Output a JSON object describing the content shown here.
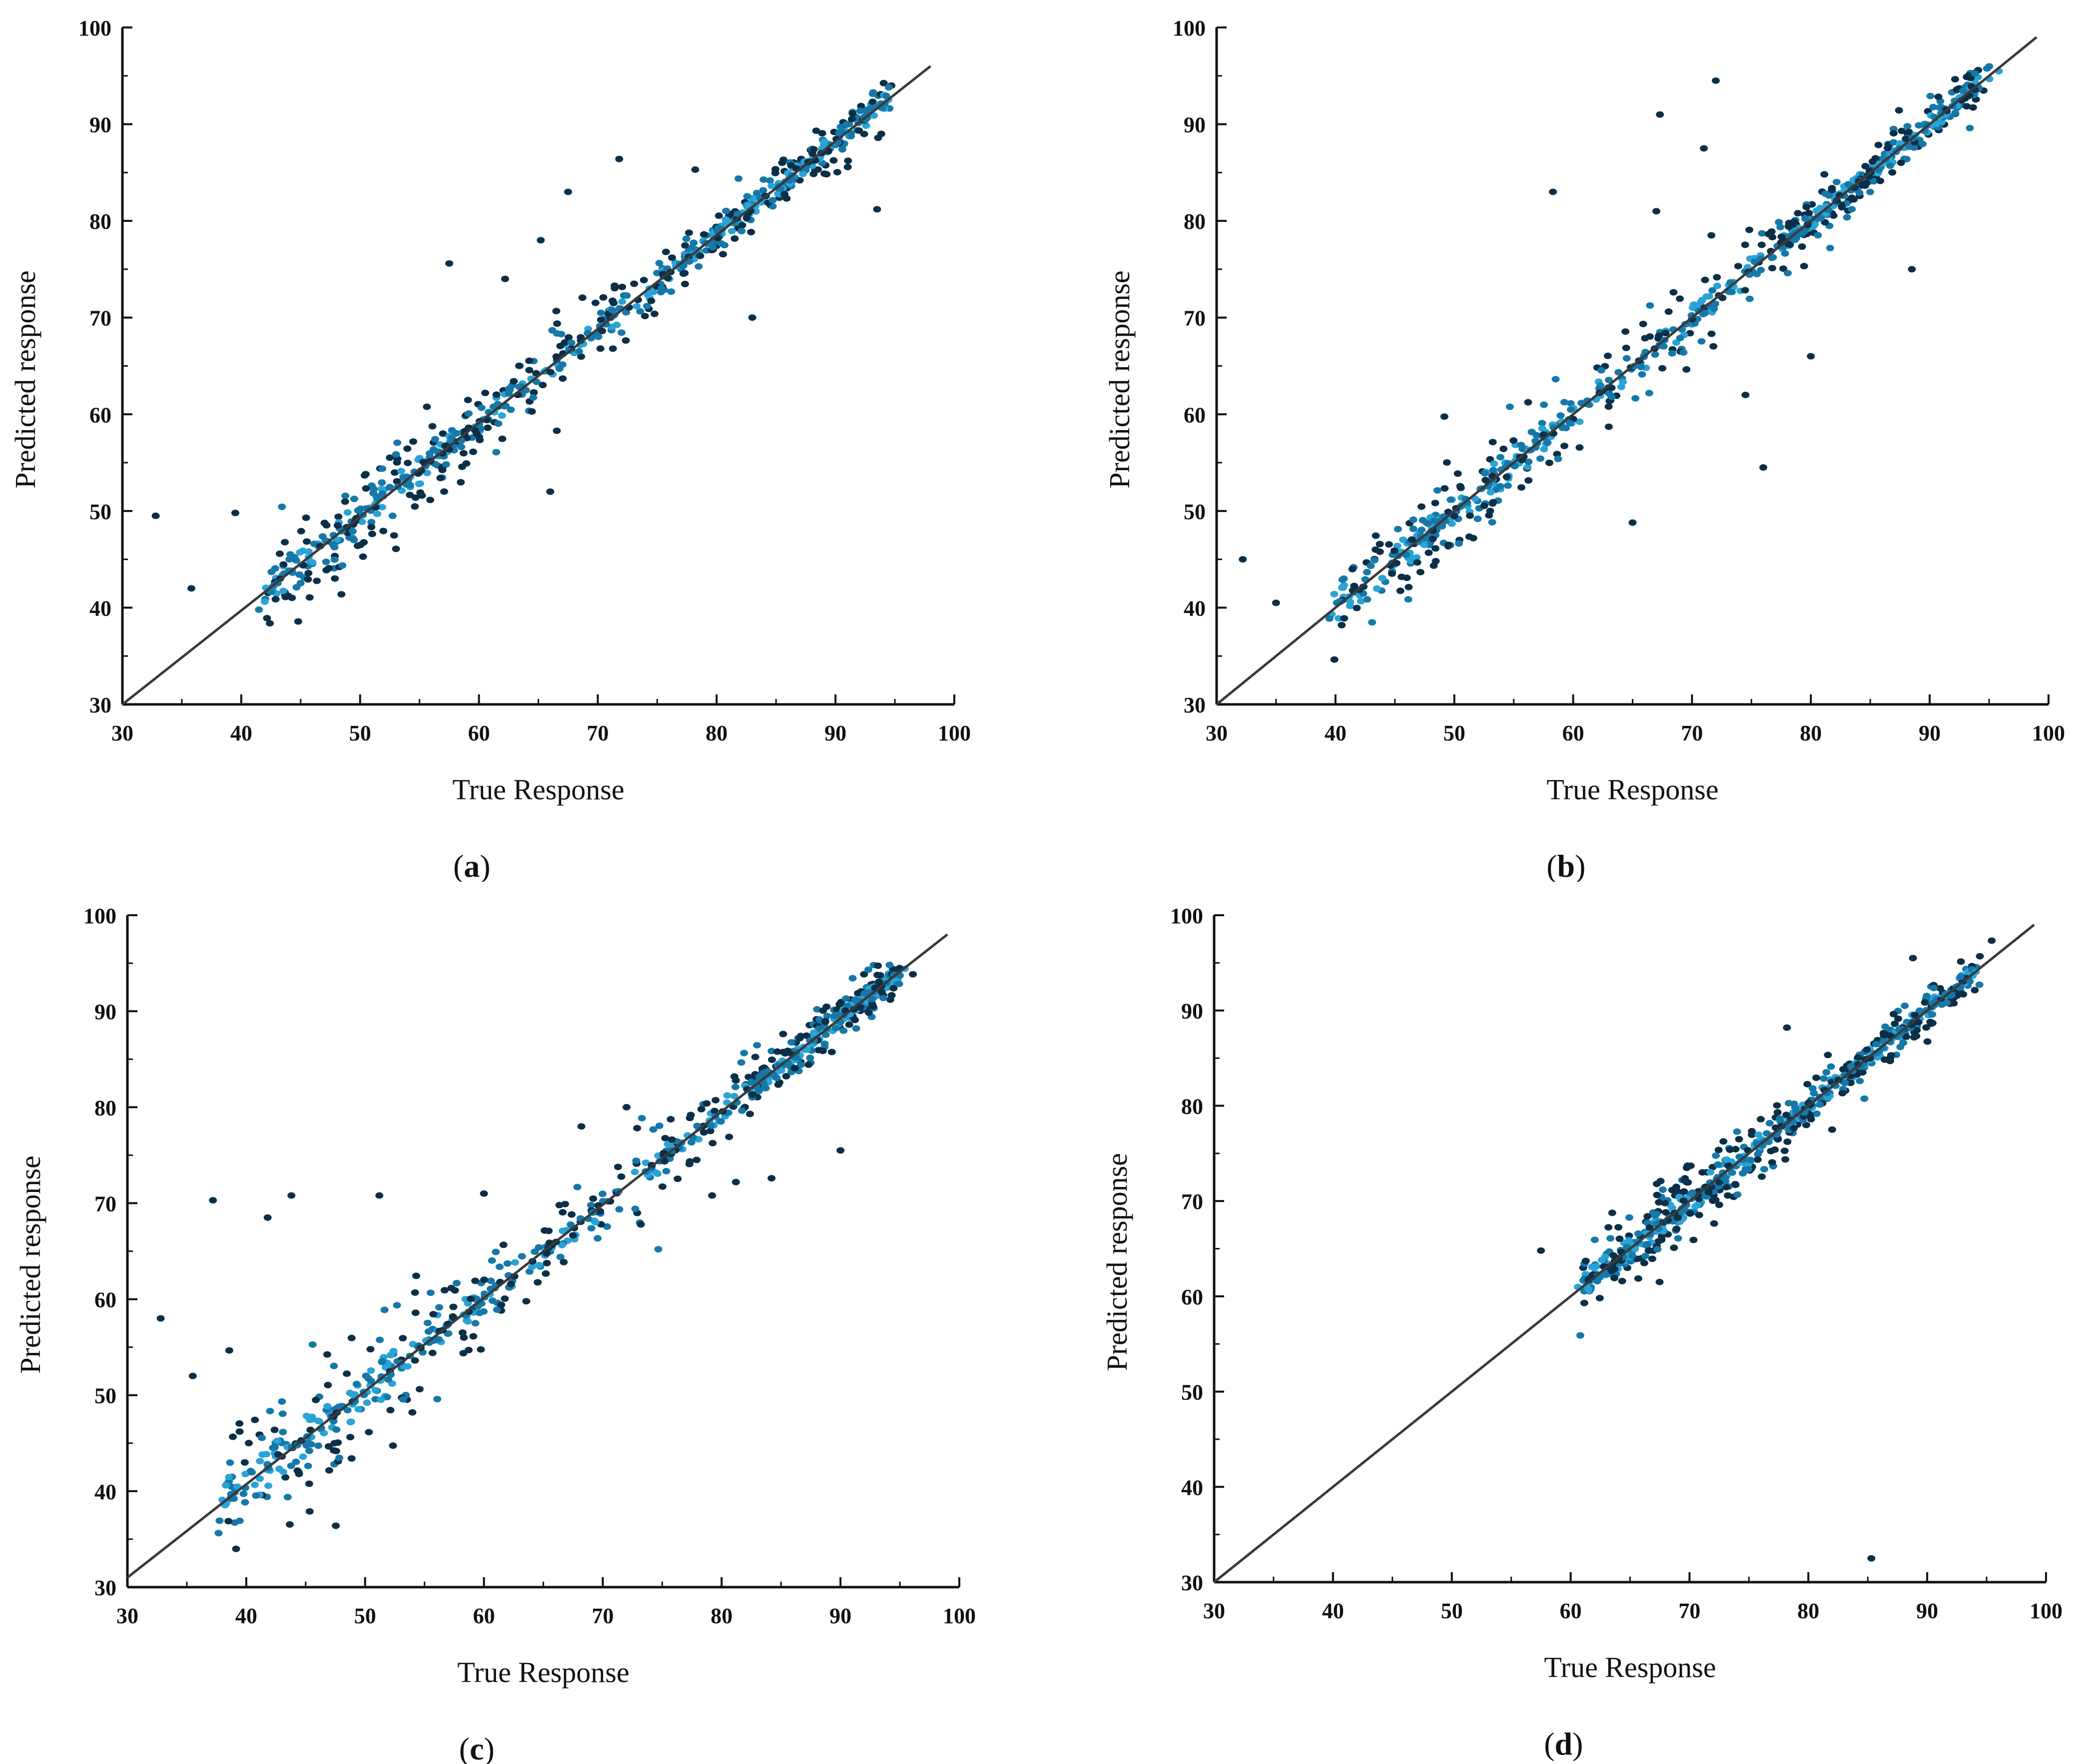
{
  "colors": {
    "point_dark": "#0c2f48",
    "point_mid": "#1578a8",
    "point_light": "#2aa3d6",
    "line": "#3a3a3a",
    "axis": "#111111"
  },
  "chart_data": [
    {
      "id": "a",
      "type": "scatter",
      "caption_letter": "a",
      "xlabel": "True Response",
      "ylabel": "Predicted response",
      "xlim": [
        30,
        100
      ],
      "ylim": [
        30,
        100
      ],
      "xticks": [
        30,
        40,
        50,
        60,
        70,
        80,
        90,
        100
      ],
      "yticks": [
        30,
        40,
        50,
        60,
        70,
        80,
        90,
        100
      ],
      "reference_line": {
        "from": [
          30,
          30
        ],
        "to": [
          98,
          96
        ]
      },
      "clusters": [
        {
          "x0": 42,
          "x1": 56,
          "spread": 3.2,
          "n": 170
        },
        {
          "x0": 56,
          "x1": 76,
          "spread": 2.4,
          "n": 150
        },
        {
          "x0": 76,
          "x1": 95,
          "spread": 1.8,
          "n": 230
        }
      ],
      "outliers": [
        [
          32.8,
          49.5
        ],
        [
          35.8,
          42
        ],
        [
          39.5,
          49.8
        ],
        [
          57.5,
          75.6
        ],
        [
          62.2,
          74
        ],
        [
          65.2,
          78
        ],
        [
          67.5,
          83
        ],
        [
          71.8,
          86.4
        ],
        [
          78.2,
          85.3
        ],
        [
          83,
          70
        ],
        [
          55.2,
          51.6
        ],
        [
          59.8,
          58
        ],
        [
          66,
          52
        ],
        [
          93.5,
          81.2
        ]
      ]
    },
    {
      "id": "b",
      "type": "scatter",
      "caption_letter": "b",
      "xlabel": "True Response",
      "ylabel": "Predicted response",
      "xlim": [
        30,
        100
      ],
      "ylim": [
        30,
        100
      ],
      "xticks": [
        30,
        40,
        50,
        60,
        70,
        80,
        90,
        100
      ],
      "yticks": [
        30,
        40,
        50,
        60,
        70,
        80,
        90,
        100
      ],
      "reference_line": {
        "from": [
          30,
          30
        ],
        "to": [
          99,
          99
        ]
      },
      "clusters": [
        {
          "x0": 40,
          "x1": 56,
          "spread": 3.4,
          "n": 190
        },
        {
          "x0": 56,
          "x1": 78,
          "spread": 2.8,
          "n": 150
        },
        {
          "x0": 78,
          "x1": 95,
          "spread": 1.7,
          "n": 240
        }
      ],
      "outliers": [
        [
          32.2,
          45
        ],
        [
          35,
          40.5
        ],
        [
          58.3,
          83
        ],
        [
          67.3,
          91
        ],
        [
          67,
          81
        ],
        [
          72,
          94.5
        ],
        [
          76,
          54.5
        ],
        [
          80,
          66
        ],
        [
          88.5,
          75
        ],
        [
          71,
          87.5
        ],
        [
          65,
          48.8
        ],
        [
          74.5,
          62
        ]
      ]
    },
    {
      "id": "c",
      "type": "scatter",
      "caption_letter": "c",
      "xlabel": "True Response",
      "ylabel": "Predicted response",
      "xlim": [
        30,
        100
      ],
      "ylim": [
        30,
        100
      ],
      "xticks": [
        30,
        40,
        50,
        60,
        70,
        80,
        90,
        100
      ],
      "yticks": [
        30,
        40,
        50,
        60,
        70,
        80,
        90,
        100
      ],
      "reference_line": {
        "from": [
          30,
          31
        ],
        "to": [
          99,
          98
        ]
      },
      "clusters": [
        {
          "x0": 38,
          "x1": 56,
          "spread": 4.5,
          "n": 190
        },
        {
          "x0": 56,
          "x1": 82,
          "spread": 2.8,
          "n": 170
        },
        {
          "x0": 82,
          "x1": 95,
          "spread": 1.6,
          "n": 230
        }
      ],
      "outliers": [
        [
          32.8,
          58
        ],
        [
          35.5,
          52
        ],
        [
          37.2,
          70.3
        ],
        [
          41.8,
          68.5
        ],
        [
          43.8,
          70.8
        ],
        [
          51.2,
          70.8
        ],
        [
          60,
          71
        ],
        [
          68.2,
          78
        ],
        [
          72,
          80
        ],
        [
          90,
          75.5
        ],
        [
          84.2,
          72.6
        ],
        [
          79.2,
          70.8
        ],
        [
          81.2,
          72.2
        ]
      ]
    },
    {
      "id": "d",
      "type": "scatter",
      "caption_letter": "d",
      "xlabel": "True Response",
      "ylabel": "Predicted response",
      "xlim": [
        30,
        100
      ],
      "ylim": [
        30,
        100
      ],
      "xticks": [
        30,
        40,
        50,
        60,
        70,
        80,
        90,
        100
      ],
      "yticks": [
        30,
        40,
        50,
        60,
        70,
        80,
        90,
        100
      ],
      "reference_line": {
        "from": [
          30,
          30
        ],
        "to": [
          99,
          99
        ]
      },
      "clusters": [
        {
          "x0": 61,
          "x1": 76,
          "spread": 2.7,
          "n": 260
        },
        {
          "x0": 76,
          "x1": 94,
          "spread": 1.7,
          "n": 240
        }
      ],
      "outliers": [
        [
          57.5,
          64.8
        ],
        [
          78.2,
          88.2
        ],
        [
          88.8,
          95.5
        ],
        [
          85.3,
          32.5
        ],
        [
          72.5,
          69.6
        ],
        [
          82,
          77.5
        ]
      ]
    }
  ]
}
